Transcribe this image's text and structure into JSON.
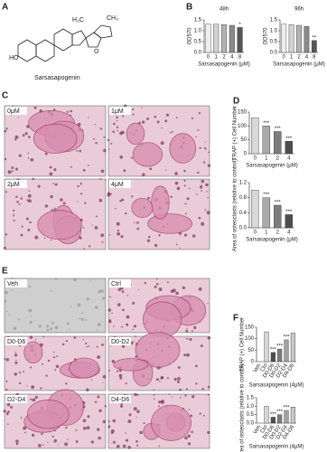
{
  "panel_labels": [
    "A",
    "B",
    "C",
    "D",
    "E",
    "F"
  ],
  "structure": {
    "name": "Sarsasapogenin",
    "groups": [
      "HO",
      "H₃C",
      "CH₃",
      "O"
    ]
  },
  "micrographs_c": [
    "0μM",
    "1μM",
    "2μM",
    "4μM"
  ],
  "micrographs_e": [
    "Veh",
    "Ctrl",
    "D0-D6",
    "D0-D2",
    "D2-D4",
    "D4-D6"
  ],
  "chart_data": [
    {
      "type": "bar",
      "title": "48h",
      "ylabel": "OD570",
      "xlabel": "Sarsasapogenin (μM)",
      "categories": [
        "0",
        "1",
        "2",
        "4",
        "8"
      ],
      "values": [
        1.3,
        1.3,
        1.28,
        1.25,
        1.15
      ],
      "annotations": [
        null,
        null,
        null,
        null,
        "*"
      ],
      "colors": [
        "#eeeeee",
        "#d2d2d2",
        "#b3b3b3",
        "#8a8a8a",
        "#555555"
      ],
      "ylim": [
        0,
        1.5
      ],
      "yticks": [
        {
          "value": 0,
          "label": "0.0"
        },
        0.5,
        {
          "value": 1,
          "label": "1.0"
        },
        1.5
      ]
    },
    {
      "type": "bar",
      "title": "96h",
      "ylabel": "OD570",
      "xlabel": "Sarsasapogenin (μM)",
      "categories": [
        "0",
        "1",
        "2",
        "4",
        "8"
      ],
      "values": [
        1.3,
        1.28,
        1.25,
        1.2,
        0.55
      ],
      "annotations": [
        null,
        null,
        null,
        null,
        "**"
      ],
      "colors": [
        "#eeeeee",
        "#d2d2d2",
        "#b3b3b3",
        "#8a8a8a",
        "#555555"
      ],
      "ylim": [
        0,
        1.5
      ],
      "yticks": [
        {
          "value": 0,
          "label": "0.0"
        },
        0.5,
        {
          "value": 1,
          "label": "1.0"
        },
        1.5
      ]
    },
    {
      "type": "bar",
      "ylabel": "TRAP (+) Cell Number",
      "xlabel": "Sarsasapogenin (μM)",
      "categories": [
        "0",
        "1",
        "2",
        "4"
      ],
      "values": [
        130,
        100,
        80,
        45
      ],
      "annotations": [
        null,
        "***",
        "***",
        "***"
      ],
      "colors": [
        "#d8d8d8",
        "#aaaaaa",
        "#7d7d7d",
        "#4e4e4e"
      ],
      "ylim": [
        0,
        150
      ],
      "yticks": [
        0,
        50,
        100,
        150
      ]
    },
    {
      "type": "bar",
      "ylabel": "Area of osteoclasts (relative to control)",
      "xlabel": "Sarsasapogenin (μM)",
      "categories": [
        "0",
        "1",
        "2",
        "4"
      ],
      "values": [
        1.0,
        0.8,
        0.6,
        0.35
      ],
      "annotations": [
        null,
        "***",
        "***",
        "***"
      ],
      "colors": [
        "#d8d8d8",
        "#aaaaaa",
        "#7d7d7d",
        "#4e4e4e"
      ],
      "ylim": [
        0,
        1.2
      ],
      "yticks": [
        {
          "value": 0,
          "label": "0.0"
        },
        0.4,
        0.8,
        1.2
      ]
    },
    {
      "type": "bar",
      "ylabel": "TRAP (+) Cell Number",
      "xlabel": "Sarsasapogenin (4μM)",
      "categories": [
        "Veh",
        "Ctrl",
        "D0-D6",
        "D0-D2",
        "D2-D4",
        "D4-D6"
      ],
      "values": [
        0,
        130,
        40,
        55,
        95,
        125
      ],
      "annotations": [
        null,
        null,
        "***",
        "***",
        "***",
        null
      ],
      "colors": [
        "#eeeeee",
        "#d6d6d6",
        "#4e4e4e",
        "#7d7d7d",
        "#a0a0a0",
        "#c8c8c8"
      ],
      "ylim": [
        0,
        150
      ],
      "yticks": [
        0,
        50,
        100,
        150
      ]
    },
    {
      "type": "bar",
      "ylabel": "Area of osteoclasts (relative to control)",
      "xlabel": "Sarsasapogenin (4μM)",
      "categories": [
        "Veh",
        "Ctrl",
        "D0-D6",
        "D0-D2",
        "D2-D4",
        "D4-D6"
      ],
      "values": [
        0,
        1.0,
        0.35,
        0.5,
        0.75,
        0.95
      ],
      "annotations": [
        null,
        null,
        "***",
        "***",
        "***",
        null
      ],
      "colors": [
        "#eeeeee",
        "#d6d6d6",
        "#4e4e4e",
        "#7d7d7d",
        "#a0a0a0",
        "#c8c8c8"
      ],
      "ylim": [
        0,
        1.5
      ],
      "yticks": [
        {
          "value": 0,
          "label": "0.0"
        },
        0.5,
        {
          "value": 1,
          "label": "1.0"
        },
        1.5
      ]
    }
  ]
}
